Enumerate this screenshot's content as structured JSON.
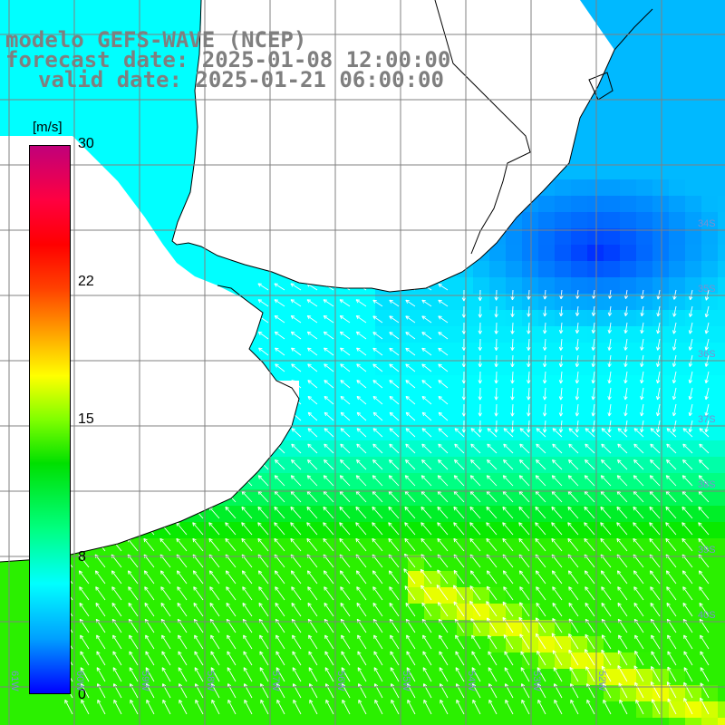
{
  "titles": {
    "line1": "modelo GEFS-WAVE (NCEP)",
    "line2": "forecast date: 2025-01-08 12:00:00",
    "line3": "valid date: 2025-01-21 06:00:00"
  },
  "colorbar": {
    "unit": "[m/s]",
    "ticks": [
      "30",
      "22",
      "15",
      "8",
      "0"
    ],
    "colors": [
      "#0000ff",
      "#00ffff",
      "#00e000",
      "#ffff00",
      "#ff0000",
      "#c0007a"
    ]
  },
  "lat_labels": [
    "34S",
    "35S",
    "36S",
    "37S",
    "38S",
    "39S",
    "40S"
  ],
  "lon_labels": [
    "61W",
    "60W",
    "59W",
    "58W",
    "57W",
    "56W",
    "55W",
    "54W",
    "53W",
    "52W"
  ],
  "colors": {
    "land": "#ffffff",
    "coast": "#000000",
    "grid": "#808080",
    "arrows": "#ffffff"
  }
}
